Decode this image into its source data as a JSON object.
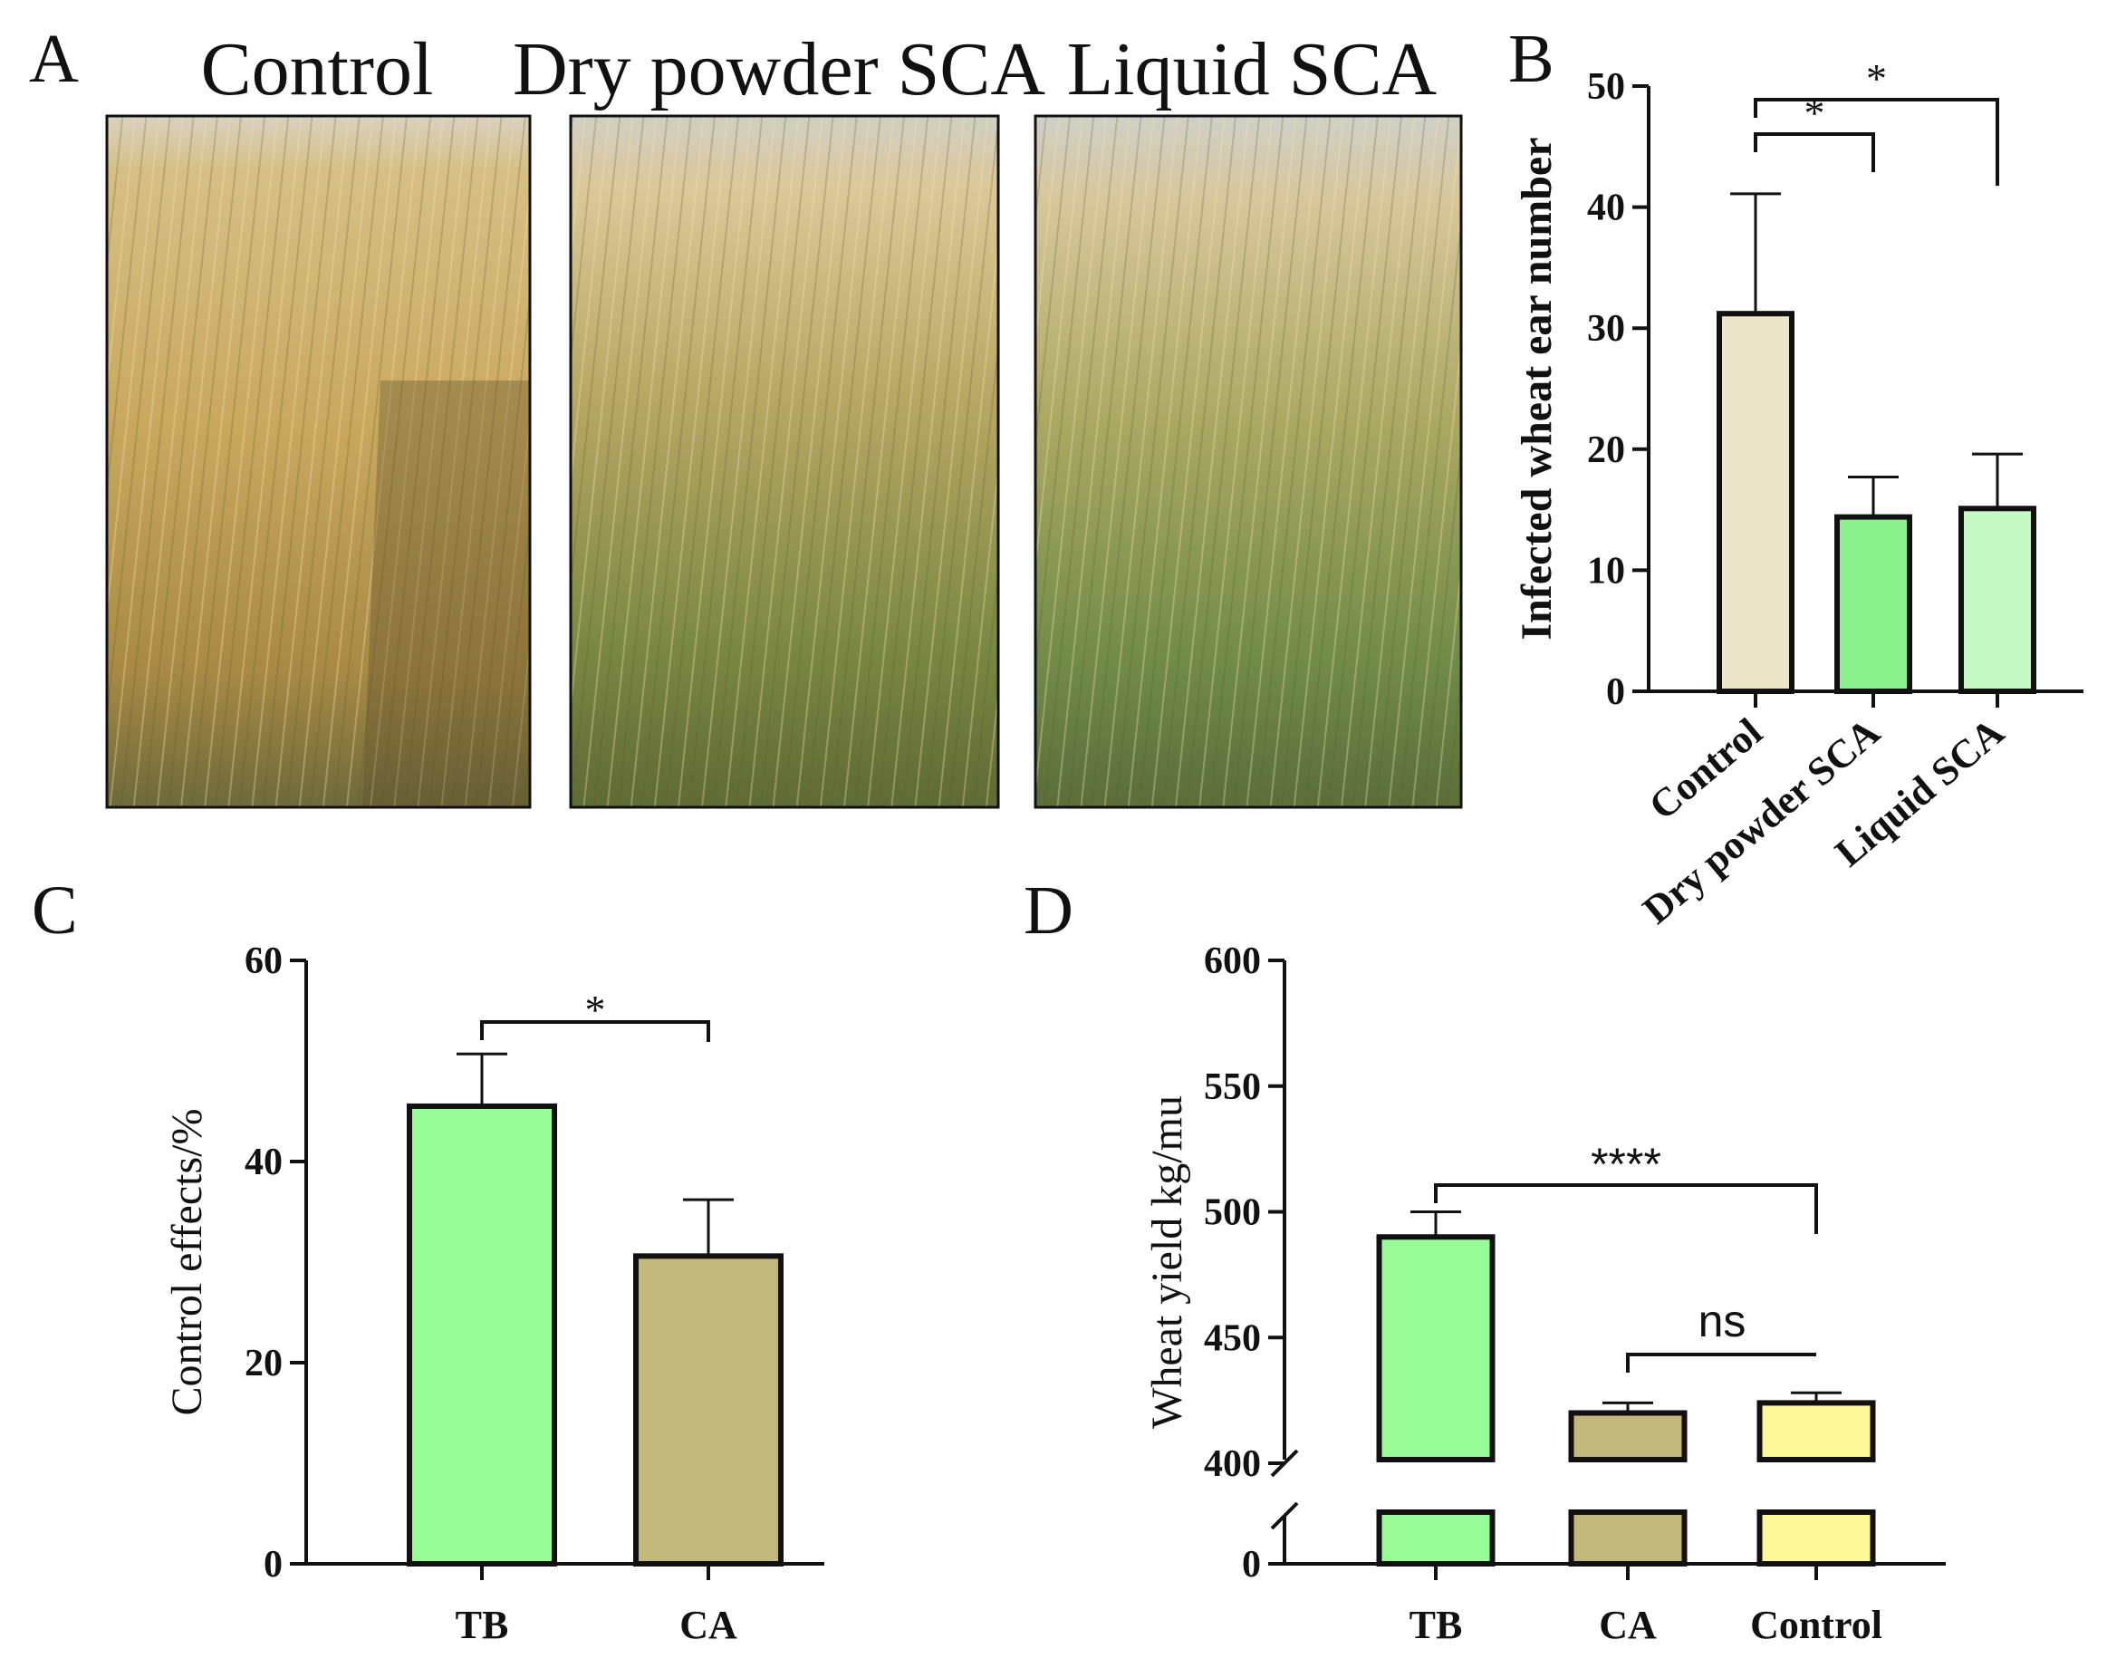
{
  "panel_labels": {
    "a": "A",
    "b": "B",
    "c": "C",
    "d": "D"
  },
  "photos": {
    "titles": [
      "Control",
      "Dry powder SCA",
      "Liquid SCA"
    ]
  },
  "chart_data": [
    {
      "id": "B",
      "type": "bar",
      "title": "",
      "xlabel": "",
      "ylabel": "Infected wheat ear number",
      "categories": [
        "Control",
        "Dry powder SCA",
        "Liquid SCA"
      ],
      "values": [
        31.2,
        14.4,
        15.1
      ],
      "errors": [
        9.9,
        3.3,
        4.5
      ],
      "colors": [
        "#ede5c8",
        "#8cf28c",
        "#c6f8c6"
      ],
      "ylim": [
        0,
        50
      ],
      "yticks": [
        0,
        10,
        20,
        30,
        40,
        50
      ],
      "significance": [
        {
          "from": "Control",
          "to": "Dry powder SCA",
          "label": "*"
        },
        {
          "from": "Control",
          "to": "Liquid SCA",
          "label": "*"
        }
      ]
    },
    {
      "id": "C",
      "type": "bar",
      "title": "",
      "xlabel": "",
      "ylabel": "Control effects/%",
      "categories": [
        "TB",
        "CA"
      ],
      "values": [
        45.5,
        30.6
      ],
      "errors": [
        5.2,
        5.6
      ],
      "colors": [
        "#98fc98",
        "#c3b87c"
      ],
      "ylim": [
        0,
        60
      ],
      "yticks": [
        0,
        20,
        40,
        60
      ],
      "significance": [
        {
          "from": "TB",
          "to": "CA",
          "label": "*"
        }
      ]
    },
    {
      "id": "D",
      "type": "bar",
      "title": "",
      "xlabel": "",
      "ylabel": "Wheat yield kg/mu",
      "categories": [
        "TB",
        "CA",
        "Control"
      ],
      "values": [
        490,
        420,
        424
      ],
      "errors": [
        10,
        4,
        4
      ],
      "colors": [
        "#98fc98",
        "#c3b87c",
        "#fef898"
      ],
      "ylim": [
        400,
        600
      ],
      "axis_break": {
        "lower": 0,
        "upper": 400
      },
      "yticks": [
        0,
        400,
        450,
        500,
        550,
        600
      ],
      "significance": [
        {
          "from": "TB",
          "to": "Control",
          "label": "****"
        },
        {
          "from": "CA",
          "to": "Control",
          "label": "ns"
        }
      ]
    }
  ]
}
